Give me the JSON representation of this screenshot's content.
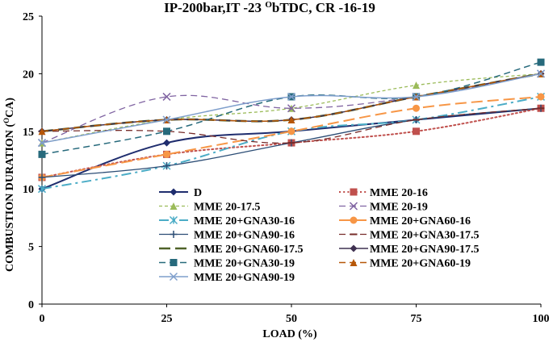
{
  "chart_data": {
    "type": "line",
    "title": "IP-200bar,IT -23 ObTDC, CR -16-19",
    "title_parts": {
      "main": "IP-200bar,IT -23 ",
      "superscript": "O",
      "rest": "bTDC, CR -16-19"
    },
    "xlabel": "LOAD (%)",
    "ylabel_parts": {
      "main": "COMBUSTION DURATION (",
      "superscript": "O",
      "rest": "CA)"
    },
    "categories": [
      "0",
      "25",
      "50",
      "75",
      "100"
    ],
    "x": [
      0,
      25,
      50,
      75,
      100
    ],
    "xlim": [
      0,
      100
    ],
    "ylim": [
      0,
      25
    ],
    "yticks": [
      "0",
      "5",
      "10",
      "15",
      "20",
      "25"
    ],
    "grid": false,
    "legend_position": "inside-bottom",
    "series": [
      {
        "name": "D",
        "values": [
          10,
          14,
          15,
          16,
          17
        ],
        "color": "#1f2d6e",
        "dash": "solid",
        "marker": "diamond",
        "width": 2
      },
      {
        "name": "MME 20-16",
        "values": [
          11,
          13,
          14,
          15,
          17
        ],
        "color": "#c0504d",
        "dash": "dot",
        "marker": "square",
        "width": 2
      },
      {
        "name": "MME 20-17.5",
        "values": [
          14,
          16,
          17,
          19,
          20
        ],
        "color": "#9bbb59",
        "dash": "shortdash",
        "marker": "triangle",
        "width": 1.3
      },
      {
        "name": "MME 20-19",
        "values": [
          14,
          18,
          17,
          18,
          20
        ],
        "color": "#8064a2",
        "dash": "dash",
        "marker": "x",
        "width": 1.3
      },
      {
        "name": "MME 20+GNA30-16",
        "values": [
          10,
          12,
          15,
          16,
          18
        ],
        "color": "#4bacc6",
        "dash": "dashdot",
        "marker": "star",
        "width": 2
      },
      {
        "name": "MME 20+GNA60-16",
        "values": [
          11,
          13,
          15,
          17,
          18
        ],
        "color": "#f79646",
        "dash": "longdash",
        "marker": "circle",
        "width": 2
      },
      {
        "name": "MME 20+GNA90-16",
        "values": [
          11,
          12,
          14,
          16,
          17
        ],
        "color": "#2c4d75",
        "dash": "solid",
        "marker": "plus",
        "width": 1.3
      },
      {
        "name": "MME 20+GNA30-17.5",
        "values": [
          15,
          15,
          14,
          16,
          17
        ],
        "color": "#772c2a",
        "dash": "dash",
        "marker": "dash",
        "width": 1.3
      },
      {
        "name": "MME 20+GNA60-17.5",
        "values": [
          15,
          16,
          16,
          18,
          20
        ],
        "color": "#4f6228",
        "dash": "longdash",
        "marker": "none",
        "width": 2.5
      },
      {
        "name": "MME 20+GNA90-17.5",
        "values": [
          15,
          16,
          16,
          18,
          20
        ],
        "color": "#3f3151",
        "dash": "solid",
        "marker": "diamond",
        "width": 1.5
      },
      {
        "name": "MME 20+GNA30-19",
        "values": [
          13,
          15,
          18,
          18,
          21
        ],
        "color": "#276a7c",
        "dash": "dash",
        "marker": "square",
        "width": 1.5
      },
      {
        "name": "MME 20+GNA60-19",
        "values": [
          15,
          16,
          16,
          18,
          20
        ],
        "color": "#b65708",
        "dash": "dash",
        "marker": "triangle",
        "width": 1.5
      },
      {
        "name": "MME 20+GNA90-19",
        "values": [
          14,
          16,
          18,
          18,
          20
        ],
        "color": "#7f9fcc",
        "dash": "solid",
        "marker": "x",
        "width": 1.5
      }
    ]
  }
}
